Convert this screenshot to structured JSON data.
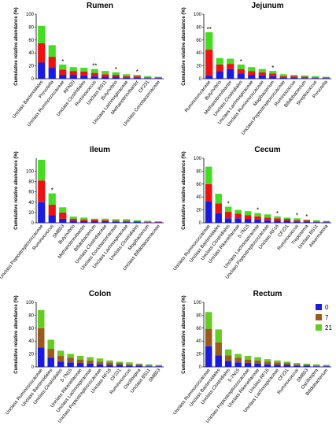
{
  "chart_data": [
    {
      "type": "bar",
      "stacked": true,
      "title": "Rumen",
      "ylabel": "Cumulative relative abundance (%)",
      "categories": [
        "Unclass Bacteroidales",
        "Prevotella",
        "Unclass Ruminococcaceae",
        "RFN20",
        "Unclass Clostridiales",
        "Ruminococcus",
        "Unclass BS11",
        "Butyrivibrio",
        "Unclass Lachnospiraceae",
        "Methanobrevibacter",
        "CF231",
        "Unclass Coriobacteriaceae"
      ],
      "series": [
        {
          "color": "#1a1ae0",
          "values": [
            25,
            17,
            6,
            6,
            5,
            4,
            3,
            3,
            2,
            2,
            1,
            1
          ]
        },
        {
          "color": "#ee1111",
          "values": [
            30,
            17,
            8,
            6,
            6,
            5,
            4,
            3,
            2,
            2,
            1,
            1
          ]
        },
        {
          "color": "#44dd22",
          "values": [
            27,
            18,
            8,
            6,
            6,
            6,
            5,
            4,
            3,
            2,
            2,
            1
          ]
        }
      ],
      "annotations": [
        null,
        null,
        "*",
        null,
        null,
        "**",
        null,
        "*",
        null,
        "*",
        null,
        null
      ],
      "ylim": [
        0,
        100
      ],
      "yticks": [
        0,
        20,
        40,
        60,
        80,
        100
      ]
    },
    {
      "type": "bar",
      "stacked": true,
      "title": "Jejunum",
      "ylabel": "Cumulative relative abundance (%)",
      "categories": [
        "Ruminococcaceae",
        "Butyrivibrio",
        "Methanobrevibacter",
        "Unclass Clostridiales",
        "Unclass Lachnospiraceae",
        "Unclass Ruminococcaceae",
        "Mogibacterium",
        "Unclass Peptostreptococcaceae",
        "Ruminococcus",
        "Bifidobacterium",
        "Streptococcus",
        "Prevotella"
      ],
      "series": [
        {
          "color": "#1a1ae0",
          "values": [
            5,
            12,
            15,
            8,
            6,
            5,
            4,
            2,
            2,
            1,
            1,
            1
          ]
        },
        {
          "color": "#ee1111",
          "values": [
            40,
            10,
            8,
            7,
            6,
            5,
            4,
            2,
            2,
            2,
            1,
            1
          ]
        },
        {
          "color": "#44dd22",
          "values": [
            27,
            10,
            8,
            7,
            6,
            5,
            4,
            3,
            2,
            2,
            2,
            1
          ]
        }
      ],
      "annotations": [
        "**",
        null,
        null,
        "*",
        null,
        null,
        "*",
        null,
        null,
        null,
        null,
        null
      ],
      "ylim": [
        0,
        100
      ],
      "yticks": [
        0,
        20,
        40,
        60,
        80,
        100
      ]
    },
    {
      "type": "bar",
      "stacked": true,
      "title": "Ileum",
      "ylabel": "Cumulative relative abundance (%)",
      "categories": [
        "Unclass Peptostreptococcaceae",
        "Ruminococcus",
        "SMB53",
        "Butyrivibrio",
        "Methanobrevibacter",
        "Bifidobacterium",
        "Unclass Clostridiaceae",
        "Unclass Coriobacteriaceae",
        "Unclass Lachnospiraceae",
        "Unclass Clostridiales",
        "Mogibacterium",
        "Unclass Bifidobacteriaceae"
      ],
      "series": [
        {
          "color": "#1a1ae0",
          "values": [
            40,
            15,
            8,
            4,
            3,
            3,
            3,
            2,
            2,
            2,
            1,
            1
          ]
        },
        {
          "color": "#ee1111",
          "values": [
            42,
            20,
            12,
            4,
            3,
            3,
            2,
            2,
            2,
            1,
            1,
            1
          ]
        },
        {
          "color": "#44dd22",
          "values": [
            40,
            22,
            10,
            4,
            4,
            2,
            3,
            3,
            3,
            2,
            2,
            1
          ]
        }
      ],
      "annotations": [
        null,
        "*",
        null,
        null,
        null,
        null,
        null,
        null,
        null,
        null,
        null,
        null
      ],
      "ylim": [
        0,
        125
      ],
      "yticks": [
        0,
        20,
        40,
        60,
        80,
        100
      ]
    },
    {
      "type": "bar",
      "stacked": true,
      "title": "Cecum",
      "ylabel": "Cumulative relative abundance (%)",
      "categories": [
        "Unclass Ruminococcaceae",
        "Unclass Bacteroidales",
        "Unclass Clostridiales",
        "Unclass Rikenellaceae",
        "5-7N15",
        "Unclass Lachnospiraceae",
        "Unclass Peptostreptococcaceae",
        "Unclass RF16",
        "CF231",
        "Ruminococcus",
        "Treponema",
        "Unclass BS11",
        "Akkermansia"
      ],
      "series": [
        {
          "color": "#1a1ae0",
          "values": [
            33,
            15,
            7,
            7,
            6,
            5,
            4,
            3,
            3,
            2,
            2,
            1,
            1
          ]
        },
        {
          "color": "#ee1111",
          "values": [
            27,
            15,
            10,
            7,
            6,
            5,
            4,
            4,
            3,
            2,
            2,
            1,
            1
          ]
        },
        {
          "color": "#44dd22",
          "values": [
            27,
            15,
            8,
            6,
            6,
            5,
            5,
            3,
            2,
            3,
            1,
            2,
            1
          ]
        }
      ],
      "annotations": [
        null,
        null,
        "*",
        null,
        null,
        "*",
        null,
        "*",
        null,
        "*",
        "*",
        null,
        null
      ],
      "ylim": [
        0,
        100
      ],
      "yticks": [
        0,
        20,
        40,
        60,
        80,
        100
      ]
    },
    {
      "type": "bar",
      "stacked": true,
      "title": "Colon",
      "ylabel": "Cumulative relative abundance (%)",
      "categories": [
        "Unclass Ruminococcaceae",
        "Unclass Bacteroidales",
        "Unclass Clostridiales",
        "5-7N15",
        "Unclass Rikenellaceae",
        "Unclass Lachnospiraceae",
        "Unclass Peptostreptococcaceae",
        "Unclass RF16",
        "CF231",
        "Ruminococcus",
        "Oscillospira",
        "Unclass BS11",
        "SMB53"
      ],
      "series": [
        {
          "color": "#1a1ae0",
          "values": [
            30,
            14,
            8,
            7,
            6,
            5,
            4,
            3,
            3,
            2,
            2,
            1,
            1
          ]
        },
        {
          "color": "#9a5a1e",
          "values": [
            30,
            14,
            9,
            7,
            5,
            5,
            4,
            4,
            3,
            2,
            2,
            1,
            1
          ]
        },
        {
          "color": "#66cc22",
          "values": [
            28,
            14,
            8,
            6,
            6,
            5,
            5,
            3,
            2,
            3,
            1,
            2,
            1
          ]
        }
      ],
      "ylim": [
        0,
        100
      ],
      "yticks": [
        0,
        20,
        40,
        60,
        80,
        100
      ]
    },
    {
      "type": "bar",
      "stacked": true,
      "title": "Rectum",
      "ylabel": "Cumulative relative abundance (%)",
      "categories": [
        "Unclass Ruminococcaceae",
        "Unclass Bacteroidales",
        "Unclass Clostridiales",
        "5-7N15",
        "Unclass Peptostreptococcaceae",
        "Unclass Rikenellaceae",
        "Unclass RF16",
        "Unclass Lachnospiraceae",
        "CF231",
        "Ruminococcus",
        "SMB53",
        "Oscillospira",
        "Bifidobacterium"
      ],
      "series": [
        {
          "name": "0",
          "color": "#1a1ae0",
          "values": [
            32,
            18,
            9,
            7,
            6,
            5,
            4,
            3,
            3,
            2,
            2,
            1,
            1
          ]
        },
        {
          "name": "7",
          "color": "#9a5a1e",
          "values": [
            27,
            20,
            9,
            7,
            5,
            5,
            4,
            4,
            3,
            2,
            1,
            1,
            1
          ]
        },
        {
          "name": "21",
          "color": "#66cc22",
          "values": [
            26,
            20,
            9,
            6,
            6,
            5,
            4,
            3,
            2,
            2,
            2,
            2,
            1
          ]
        }
      ],
      "legend": "upper right",
      "ylim": [
        0,
        100
      ],
      "yticks": [
        0,
        20,
        40,
        60,
        80,
        100
      ]
    }
  ]
}
